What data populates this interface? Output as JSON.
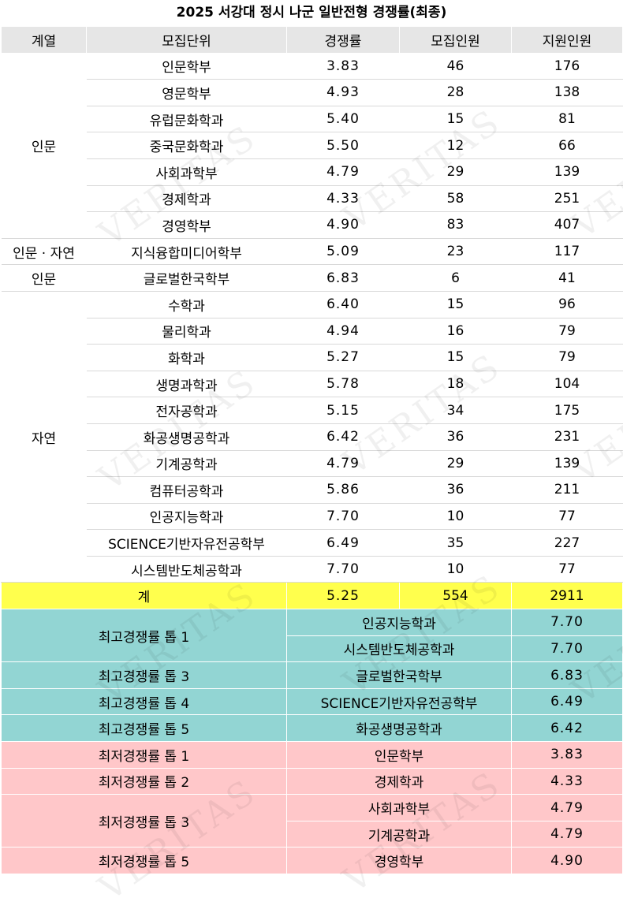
{
  "title": "2025 서강대 정시 나군 일반전형 경쟁률(최종)",
  "watermark": "VERITAS",
  "headers": [
    "계열",
    "모집단위",
    "경쟁률",
    "모집인원",
    "지원인원"
  ],
  "groups": [
    {
      "name": "인문",
      "rows": [
        {
          "unit": "인문학부",
          "ratio": "3.83",
          "quota": "46",
          "applicants": "176"
        },
        {
          "unit": "영문학부",
          "ratio": "4.93",
          "quota": "28",
          "applicants": "138"
        },
        {
          "unit": "유럽문화학과",
          "ratio": "5.40",
          "quota": "15",
          "applicants": "81"
        },
        {
          "unit": "중국문화학과",
          "ratio": "5.50",
          "quota": "12",
          "applicants": "66"
        },
        {
          "unit": "사회과학부",
          "ratio": "4.79",
          "quota": "29",
          "applicants": "139"
        },
        {
          "unit": "경제학과",
          "ratio": "4.33",
          "quota": "58",
          "applicants": "251"
        },
        {
          "unit": "경영학부",
          "ratio": "4.90",
          "quota": "83",
          "applicants": "407"
        }
      ]
    },
    {
      "name": "인문 · 자연",
      "rows": [
        {
          "unit": "지식융합미디어학부",
          "ratio": "5.09",
          "quota": "23",
          "applicants": "117"
        }
      ]
    },
    {
      "name": "인문",
      "rows": [
        {
          "unit": "글로벌한국학부",
          "ratio": "6.83",
          "quota": "6",
          "applicants": "41"
        }
      ]
    },
    {
      "name": "자연",
      "rows": [
        {
          "unit": "수학과",
          "ratio": "6.40",
          "quota": "15",
          "applicants": "96"
        },
        {
          "unit": "물리학과",
          "ratio": "4.94",
          "quota": "16",
          "applicants": "79"
        },
        {
          "unit": "화학과",
          "ratio": "5.27",
          "quota": "15",
          "applicants": "79"
        },
        {
          "unit": "생명과학과",
          "ratio": "5.78",
          "quota": "18",
          "applicants": "104"
        },
        {
          "unit": "전자공학과",
          "ratio": "5.15",
          "quota": "34",
          "applicants": "175"
        },
        {
          "unit": "화공생명공학과",
          "ratio": "6.42",
          "quota": "36",
          "applicants": "231"
        },
        {
          "unit": "기계공학과",
          "ratio": "4.79",
          "quota": "29",
          "applicants": "139"
        },
        {
          "unit": "컴퓨터공학과",
          "ratio": "5.86",
          "quota": "36",
          "applicants": "211"
        },
        {
          "unit": "인공지능학과",
          "ratio": "7.70",
          "quota": "10",
          "applicants": "77"
        },
        {
          "unit": "SCIENCE기반자유전공학부",
          "ratio": "6.49",
          "quota": "35",
          "applicants": "227"
        },
        {
          "unit": "시스템반도체공학과",
          "ratio": "7.70",
          "quota": "10",
          "applicants": "77"
        }
      ]
    }
  ],
  "total": {
    "label": "계",
    "ratio": "5.25",
    "quota": "554",
    "applicants": "2911"
  },
  "top_ranks": [
    {
      "label": "최고경쟁률 톱 1",
      "items": [
        {
          "unit": "인공지능학과",
          "ratio": "7.70"
        },
        {
          "unit": "시스템반도체공학과",
          "ratio": "7.70"
        }
      ]
    },
    {
      "label": "최고경쟁률 톱 3",
      "items": [
        {
          "unit": "글로벌한국학부",
          "ratio": "6.83"
        }
      ]
    },
    {
      "label": "최고경쟁률 톱 4",
      "items": [
        {
          "unit": "SCIENCE기반자유전공학부",
          "ratio": "6.49"
        }
      ]
    },
    {
      "label": "최고경쟁률 톱 5",
      "items": [
        {
          "unit": "화공생명공학과",
          "ratio": "6.42"
        }
      ]
    }
  ],
  "low_ranks": [
    {
      "label": "최저경쟁률 톱 1",
      "items": [
        {
          "unit": "인문학부",
          "ratio": "3.83"
        }
      ]
    },
    {
      "label": "최저경쟁률 톱 2",
      "items": [
        {
          "unit": "경제학과",
          "ratio": "4.33"
        }
      ]
    },
    {
      "label": "최저경쟁률 톱 3",
      "items": [
        {
          "unit": "사회과학부",
          "ratio": "4.79"
        },
        {
          "unit": "기계공학과",
          "ratio": "4.79"
        }
      ]
    },
    {
      "label": "최저경쟁률 톱 5",
      "items": [
        {
          "unit": "경영학부",
          "ratio": "4.90"
        }
      ]
    }
  ],
  "colors": {
    "header": "#e6e6e6",
    "total": "#ffff4d",
    "top": "#92d5d3",
    "low": "#ffc7c9"
  }
}
